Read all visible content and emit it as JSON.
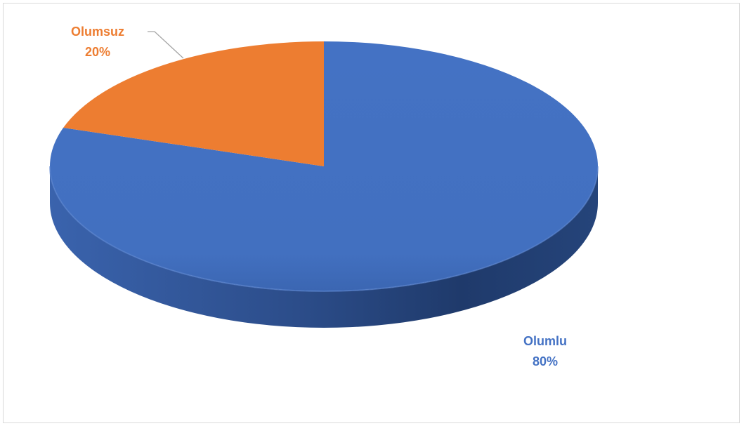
{
  "chart_data": {
    "type": "pie",
    "style": "3d",
    "categories": [
      "Olumlu",
      "Olumsuz"
    ],
    "values": [
      80,
      20
    ],
    "labels": [
      "80%",
      "20%"
    ],
    "colors": [
      "#4472c4",
      "#ed7d31"
    ],
    "title": ""
  }
}
